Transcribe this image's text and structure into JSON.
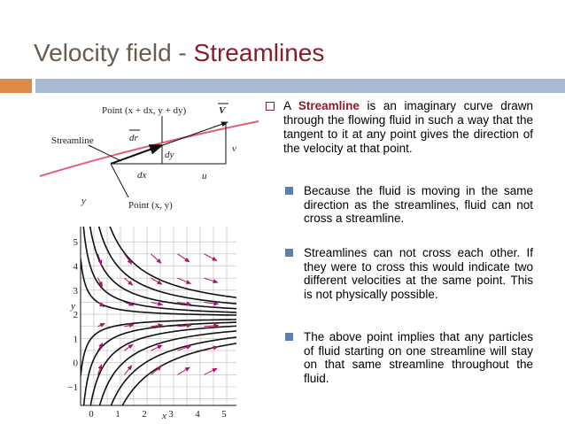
{
  "title": {
    "lead": "Velocity field -",
    "highlight": "Streamlines"
  },
  "bullet": {
    "lead": "A",
    "term": "Streamline",
    "text": "is an imaginary curve drawn through the flowing fluid in such a way that the tangent to it at any point gives the direction of the velocity at that point."
  },
  "sub_bullets": [
    "Because the fluid is moving in the same direction as the streamlines, fluid can not cross a streamline.",
    "Streamlines can not cross each other. If they were to cross this would indicate two different velocities at the same point. This is not physically possible.",
    "The above point implies that any particles of fluid starting on one streamline will stay on that same streamline throughout the fluid."
  ],
  "figure": {
    "labels": {
      "point_end": "Point (x + dx, y + dy)",
      "velocity": "V",
      "dr": "dr",
      "dy": "dy",
      "v": "v",
      "streamline": "Streamline",
      "dx": "dx",
      "u": "u",
      "point_start": "Point (x, y)"
    },
    "plot": {
      "x_label": "x",
      "y_label": "y",
      "x_ticks": [
        "0",
        "1",
        "2",
        "3",
        "4",
        "5"
      ],
      "y_ticks": [
        "−1",
        "0",
        "1",
        "2",
        "3",
        "4",
        "5"
      ]
    }
  }
}
